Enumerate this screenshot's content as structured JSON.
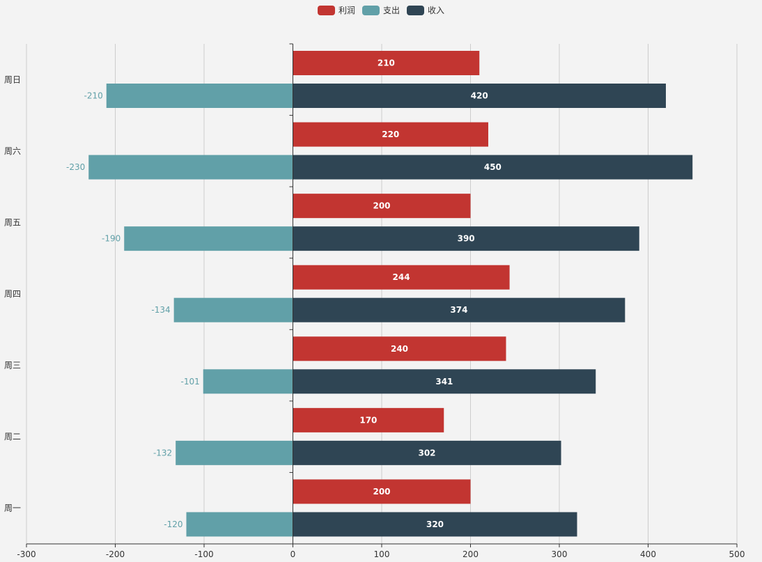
{
  "chart_data": {
    "type": "bar",
    "orientation": "horizontal",
    "categories": [
      "周一",
      "周二",
      "周三",
      "周四",
      "周五",
      "周六",
      "周日"
    ],
    "series": [
      {
        "name": "利润",
        "color": "#c23531",
        "values": [
          200,
          170,
          240,
          244,
          200,
          220,
          210
        ]
      },
      {
        "name": "支出",
        "color": "#61a0a8",
        "values": [
          -120,
          -132,
          -101,
          -134,
          -190,
          -230,
          -210
        ]
      },
      {
        "name": "收入",
        "color": "#2f4554",
        "values": [
          320,
          302,
          341,
          374,
          390,
          450,
          420
        ]
      }
    ],
    "x_ticks": [
      -300,
      -200,
      -100,
      0,
      100,
      200,
      300,
      400,
      500
    ],
    "xlim": [
      -300,
      500
    ],
    "grid": true,
    "legend_position": "top-center",
    "data_labels": true
  }
}
